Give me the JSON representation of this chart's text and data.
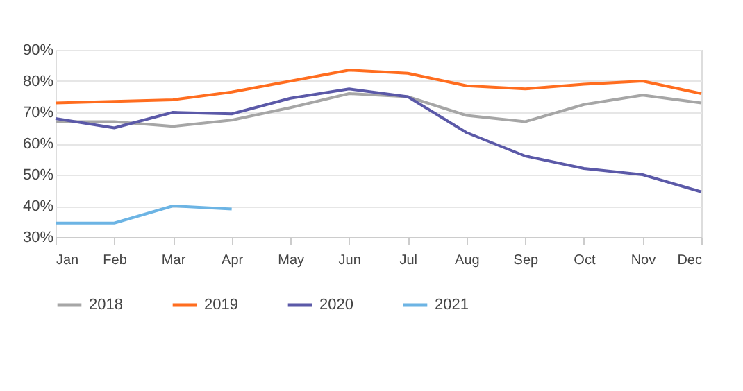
{
  "chart_data": {
    "type": "line",
    "categories": [
      "Jan",
      "Feb",
      "Mar",
      "Apr",
      "May",
      "Jun",
      "Jul",
      "Aug",
      "Sep",
      "Oct",
      "Nov",
      "Dec"
    ],
    "series": [
      {
        "name": "2018",
        "color": "#a6a6a6",
        "values": [
          67,
          67,
          65.5,
          67.5,
          71.5,
          76,
          75,
          69,
          67,
          72.5,
          75.5,
          73
        ]
      },
      {
        "name": "2019",
        "color": "#ff6d1f",
        "values": [
          73,
          73.5,
          74,
          76.5,
          80,
          83.5,
          82.5,
          78.5,
          77.5,
          79,
          80,
          76
        ]
      },
      {
        "name": "2020",
        "color": "#5b59a8",
        "values": [
          68,
          65,
          70,
          69.5,
          74.5,
          77.5,
          75,
          63.5,
          56,
          52,
          50,
          44.5
        ]
      },
      {
        "name": "2021",
        "color": "#6cb4e4",
        "values": [
          34.5,
          34.5,
          40,
          39,
          null,
          null,
          null,
          null,
          null,
          null,
          null,
          null
        ]
      }
    ],
    "ylim": [
      30,
      90
    ],
    "yticks": [
      {
        "value": 30,
        "label": "30%"
      },
      {
        "value": 40,
        "label": "40%"
      },
      {
        "value": 50,
        "label": "50%"
      },
      {
        "value": 60,
        "label": "60%"
      },
      {
        "value": 70,
        "label": "70%"
      },
      {
        "value": 80,
        "label": "80%"
      },
      {
        "value": 90,
        "label": "90%"
      }
    ],
    "grid": "y",
    "legend": "bottom",
    "marker": "none",
    "line_style": "solid"
  }
}
